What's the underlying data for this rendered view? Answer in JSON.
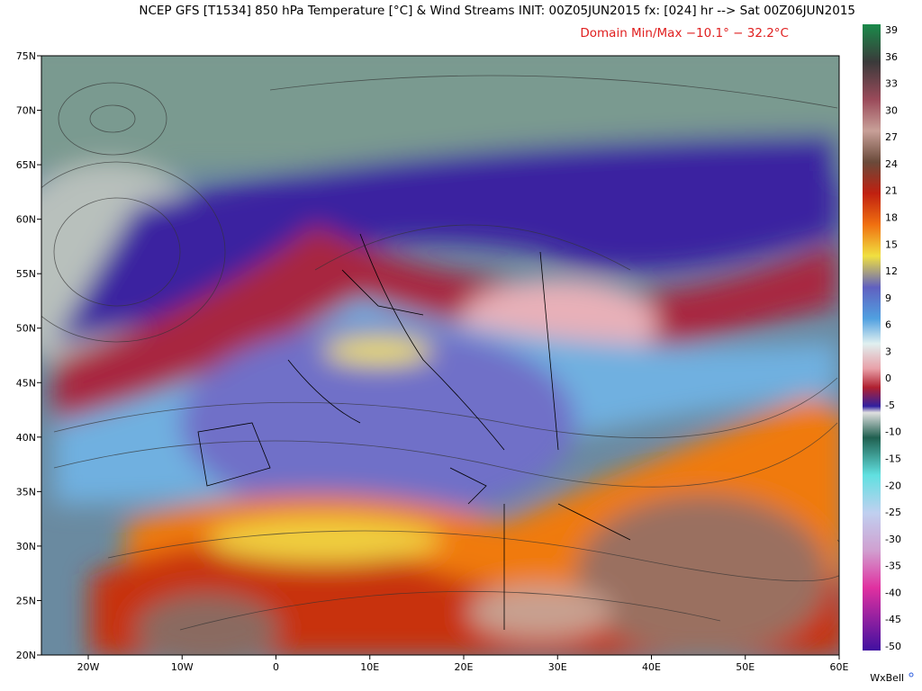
{
  "header": {
    "title": "NCEP GFS [T1534] 850 hPa Temperature [°C] & Wind Streams INIT: 00Z05JUN2015 fx: [024] hr --> Sat 00Z06JUN2015",
    "subtitle": "Domain Min/Max −10.1° −  32.2°C"
  },
  "map": {
    "lat_labels": [
      "75N",
      "70N",
      "65N",
      "60N",
      "55N",
      "50N",
      "45N",
      "40N",
      "35N",
      "30N",
      "25N",
      "20N"
    ],
    "lon_labels": [
      "20W",
      "10W",
      "0",
      "10E",
      "20E",
      "30E",
      "40E",
      "50E",
      "60E"
    ]
  },
  "colorbar": {
    "labels": [
      "39",
      "36",
      "33",
      "30",
      "27",
      "24",
      "21",
      "18",
      "15",
      "12",
      "9",
      "6",
      "3",
      "0",
      "-5",
      "-10",
      "-15",
      "-20",
      "-25",
      "-30",
      "-35",
      "-40",
      "-45",
      "-50"
    ]
  },
  "credit": "WxBell"
}
